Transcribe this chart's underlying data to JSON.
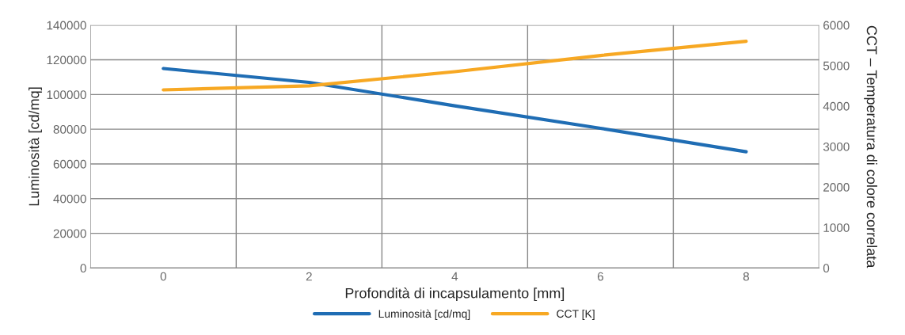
{
  "chart_data": {
    "type": "line",
    "xlabel": "Profondità di incapsulamento [mm]",
    "ylabel": "Luminosità [cd/mq]",
    "y2label": "CCT – Temperatura di colore correlata",
    "categories": [
      "0",
      "2",
      "4",
      "6",
      "8"
    ],
    "series": [
      {
        "name": "Luminosità [cd/mq]",
        "color": "#1f6db4",
        "values": [
          115000,
          107000,
          93500,
          80500,
          67000
        ]
      },
      {
        "name": "CCT [K]",
        "color": "#f7a823",
        "axis": "y2",
        "values": [
          4400,
          4500,
          4850,
          5250,
          5600
        ]
      }
    ],
    "ylim": [
      0,
      140000
    ],
    "yticks": [
      0,
      20000,
      40000,
      60000,
      80000,
      100000,
      120000,
      140000
    ],
    "y2lim": [
      0,
      6000
    ],
    "y2ticks": [
      0,
      1000,
      2000,
      3000,
      4000,
      5000,
      6000
    ],
    "grid": true,
    "legend": "bottom",
    "marker": "none",
    "line_style": "solid"
  }
}
